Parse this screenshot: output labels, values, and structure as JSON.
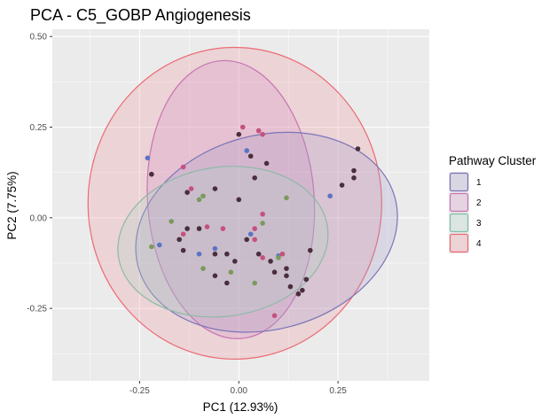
{
  "chart_data": {
    "type": "scatter",
    "title": "PCA - C5_GOBP Angiogenesis",
    "xlabel": "PC1 (12.93%)",
    "ylabel": "PC2 (7.75%)",
    "xlim": [
      -0.47,
      0.48
    ],
    "ylim": [
      -0.45,
      0.52
    ],
    "xticks": [
      -0.25,
      0.0,
      0.25
    ],
    "xtick_labels": [
      "-0.25",
      "0.00",
      "0.25"
    ],
    "yticks": [
      -0.25,
      0.0,
      0.25,
      0.5
    ],
    "ytick_labels": [
      "-0.25",
      "0.00",
      "0.25",
      "0.50"
    ],
    "grid": true,
    "legend": {
      "title": "Pathway Cluster",
      "placement": "right",
      "entries": [
        {
          "label": "1",
          "color": "#7b74b8"
        },
        {
          "label": "2",
          "color": "#c874b2"
        },
        {
          "label": "3",
          "color": "#7fbfa8"
        },
        {
          "label": "4",
          "color": "#ec6a74"
        }
      ]
    },
    "ellipses": [
      {
        "cluster": "4",
        "center": [
          -0.01,
          0.04
        ],
        "semi_axes": [
          0.37,
          0.43
        ],
        "angle_deg": 0,
        "color": "#ec6a74",
        "fill": "rgba(236,140,150,0.25)"
      },
      {
        "cluster": "2",
        "center": [
          -0.02,
          0.05
        ],
        "semi_axes": [
          0.21,
          0.384
        ],
        "angle_deg": 4,
        "color": "#c874b2",
        "fill": "rgba(210,140,195,0.25)"
      },
      {
        "cluster": "1",
        "center": [
          0.07,
          -0.04
        ],
        "semi_axes": [
          0.335,
          0.268
        ],
        "angle_deg": 15,
        "color": "#7b74b8",
        "fill": "rgba(160,150,200,0.25)"
      },
      {
        "cluster": "3",
        "center": [
          -0.04,
          -0.066
        ],
        "semi_axes": [
          0.266,
          0.206
        ],
        "angle_deg": 8,
        "color": "#8fb8a8",
        "fill": "rgba(170,210,195,0.25)"
      }
    ],
    "series": [
      {
        "name": "1",
        "color": "#5b73c4",
        "points": [
          [
            -0.23,
            0.165
          ],
          [
            -0.2,
            -0.075
          ],
          [
            -0.06,
            -0.085
          ],
          [
            0.03,
            -0.045
          ],
          [
            0.1,
            -0.105
          ],
          [
            0.23,
            0.06
          ],
          [
            0.02,
            0.185
          ],
          [
            -0.1,
            -0.1
          ]
        ]
      },
      {
        "name": "2",
        "color": "#c5517e",
        "points": [
          [
            -0.14,
            0.14
          ],
          [
            -0.12,
            0.08
          ],
          [
            -0.13,
            0.07
          ],
          [
            -0.08,
            -0.025
          ],
          [
            -0.04,
            -0.03
          ],
          [
            0.05,
            0.24
          ],
          [
            0.06,
            0.23
          ],
          [
            0.04,
            -0.03
          ],
          [
            0.04,
            -0.06
          ],
          [
            0.06,
            0.01
          ],
          [
            0.11,
            -0.1
          ],
          [
            0.06,
            -0.11
          ],
          [
            0.09,
            -0.27
          ],
          [
            -0.14,
            -0.045
          ],
          [
            0.01,
            0.25
          ]
        ]
      },
      {
        "name": "3",
        "color": "#7a9a5c",
        "points": [
          [
            -0.17,
            -0.01
          ],
          [
            -0.15,
            -0.06
          ],
          [
            -0.1,
            0.05
          ],
          [
            -0.09,
            0.06
          ],
          [
            0.06,
            -0.015
          ],
          [
            0.12,
            0.055
          ],
          [
            0.1,
            -0.11
          ],
          [
            0.04,
            -0.18
          ],
          [
            -0.02,
            -0.15
          ],
          [
            -0.09,
            -0.14
          ],
          [
            -0.22,
            -0.08
          ]
        ]
      },
      {
        "name": "4",
        "color": "#4a2e3c",
        "points": [
          [
            -0.22,
            0.12
          ],
          [
            -0.14,
            -0.09
          ],
          [
            -0.13,
            -0.03
          ],
          [
            -0.1,
            -0.03
          ],
          [
            -0.06,
            0.08
          ],
          [
            -0.06,
            -0.1
          ],
          [
            -0.03,
            -0.1
          ],
          [
            -0.06,
            -0.16
          ],
          [
            -0.03,
            -0.18
          ],
          [
            0.0,
            0.23
          ],
          [
            0.03,
            0.17
          ],
          [
            0.04,
            0.11
          ],
          [
            0.0,
            0.05
          ],
          [
            0.02,
            -0.06
          ],
          [
            0.05,
            -0.1
          ],
          [
            0.08,
            -0.12
          ],
          [
            0.09,
            -0.15
          ],
          [
            0.12,
            -0.16
          ],
          [
            0.13,
            -0.19
          ],
          [
            0.16,
            -0.2
          ],
          [
            0.18,
            -0.09
          ],
          [
            0.17,
            -0.17
          ],
          [
            0.26,
            0.09
          ],
          [
            0.29,
            0.13
          ],
          [
            0.3,
            0.19
          ],
          [
            0.29,
            0.11
          ],
          [
            0.12,
            -0.14
          ],
          [
            0.07,
            0.15
          ],
          [
            -0.01,
            -0.12
          ],
          [
            0.15,
            -0.21
          ],
          [
            -0.15,
            -0.06
          ],
          [
            -0.13,
            0.07
          ]
        ]
      }
    ]
  }
}
